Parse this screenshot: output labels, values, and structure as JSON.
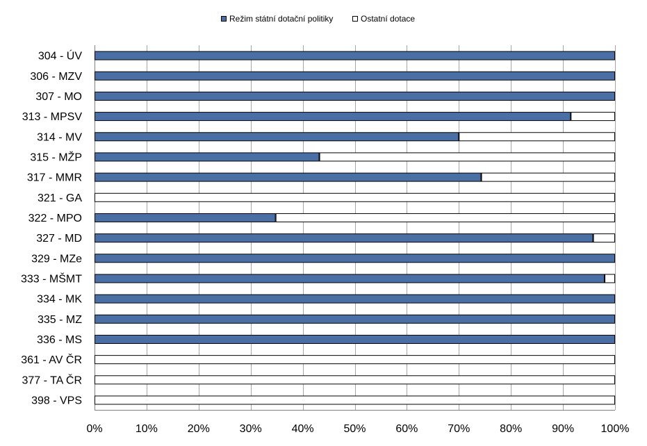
{
  "chart_data": {
    "type": "bar",
    "orientation": "horizontal",
    "stacked": "percent",
    "categories": [
      "304 - ÚV",
      "306 - MZV",
      "307 - MO",
      "313 - MPSV",
      "314 - MV",
      "315 - MŽP",
      "317 - MMR",
      "321 - GA",
      "322 - MPO",
      "327 - MD",
      "329 - MZe",
      "333 - MŠMT",
      "334 - MK",
      "335 - MZ",
      "336 - MS",
      "361 - AV ČR",
      "377 - TA ČR",
      "398 - VPS"
    ],
    "series": [
      {
        "name": "Režim státní dotační politiky",
        "color": "#4a6fa5",
        "values": [
          100,
          100,
          100,
          91.5,
          70,
          43.2,
          74.3,
          0,
          34.8,
          95.8,
          100,
          98,
          100,
          100,
          100,
          0,
          0,
          0
        ]
      },
      {
        "name": "Ostatní dotace",
        "color": "#ffffff",
        "values": [
          0,
          0,
          0,
          8.5,
          30,
          56.8,
          25.7,
          100,
          65.2,
          4.2,
          0,
          2,
          0,
          0,
          0,
          100,
          100,
          100
        ]
      }
    ],
    "x_ticks": [
      "0%",
      "10%",
      "20%",
      "30%",
      "40%",
      "50%",
      "60%",
      "70%",
      "80%",
      "90%",
      "100%"
    ],
    "xlim": [
      0,
      100
    ],
    "grid": "vertical",
    "legend_position": "top"
  }
}
